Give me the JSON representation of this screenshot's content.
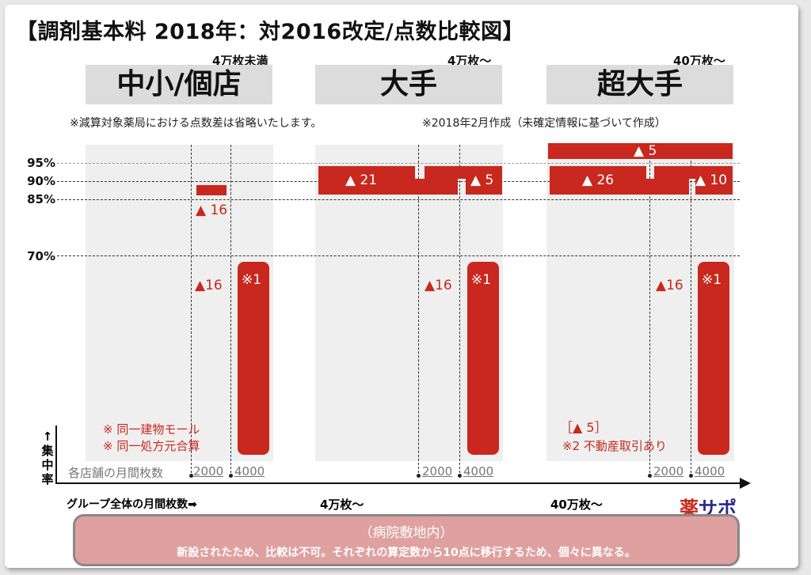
{
  "title": "【調剤基本料 2018年：対2016改定/点数比較図】",
  "columns": [
    {
      "threshold": "4万枚未満",
      "name": "中小/個店"
    },
    {
      "threshold": "4万枚～",
      "name": "大手"
    },
    {
      "threshold": "40万枚～",
      "name": "超大手"
    }
  ],
  "notes": {
    "left": "※減算対象薬局における点数差は省略いたします。",
    "right": "※2018年2月作成（未確定情報に基づいて作成）"
  },
  "y_axis": {
    "ticks": [
      "95%",
      "90%",
      "85%",
      "70%"
    ],
    "label": "↑ 集中率"
  },
  "col1": {
    "label_16a": "▲ 16",
    "label_16b": "▲16",
    "label_note1": "※1",
    "note_lines": [
      "※ 同一建物モール",
      "※ 同一処方元合算"
    ]
  },
  "col2": {
    "label_21": "▲ 21",
    "label_5": "▲ 5",
    "label_16": "▲16",
    "label_note1": "※1"
  },
  "col3": {
    "label_5top": "▲ 5",
    "label_26": "▲ 26",
    "label_10": "▲ 10",
    "label_16": "▲16",
    "label_note1": "※1",
    "bracket": "［▲ 5］",
    "note2": "※2 不動産取引あり"
  },
  "x_axis": {
    "row_label": "各店舗の月間枚数",
    "counts": [
      "2000",
      "4000"
    ],
    "group_label": "グループ全体の月間枚数➡",
    "group_ticks": [
      "4万枚～",
      "40万枚～"
    ]
  },
  "footer": {
    "heading": "（病院敷地内）",
    "text": "新設されたため、比較は不可。それぞれの算定数から10点に移行するため、個々に異なる。"
  },
  "logo": {
    "char1": "薬",
    "rest": "サポ",
    "color1": "#c8281e",
    "color2": "#2a2a8a"
  },
  "colors": {
    "accent": "#c8281e",
    "panel": "#efefef",
    "header": "#dcdcdc"
  }
}
